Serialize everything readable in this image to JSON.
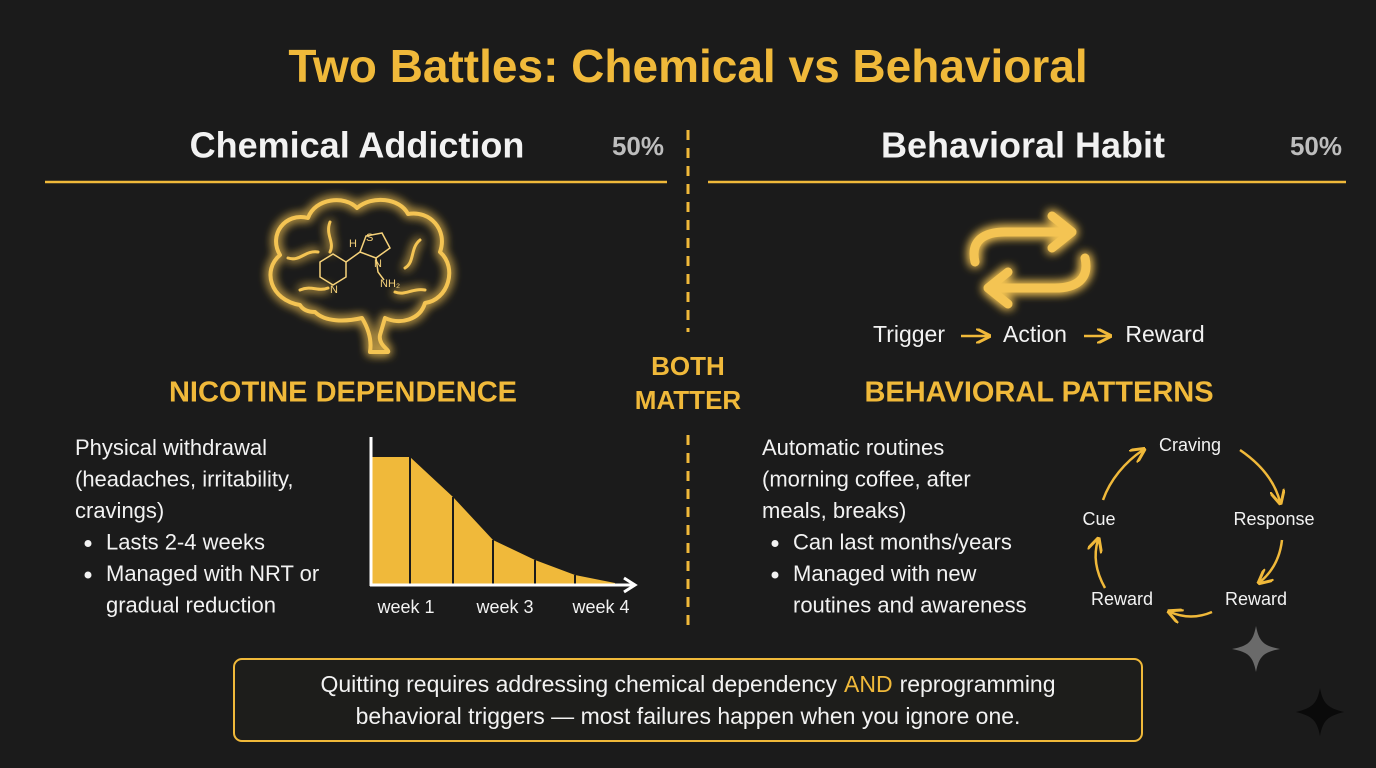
{
  "title": "Two Battles: Chemical vs Behavioral",
  "left": {
    "heading": "Chemical Addiction",
    "share": "50%",
    "molecule_labels": [
      "H",
      "S",
      "N",
      "N",
      "NH₂"
    ],
    "subtitle": "NICOTINE DEPENDENCE",
    "body": [
      "Physical withdrawal",
      "(headaches, irritability,",
      "cravings)"
    ],
    "bullets": [
      [
        "Lasts 2-4 weeks"
      ],
      [
        "Managed with NRT or",
        "gradual reduction"
      ]
    ],
    "chart_labels": [
      "week 1",
      "week 3",
      "week 4"
    ]
  },
  "center": [
    "BOTH",
    "MATTER"
  ],
  "right": {
    "heading": "Behavioral Habit",
    "share": "50%",
    "flow": [
      "Trigger",
      "Action",
      "Reward"
    ],
    "subtitle": "BEHAVIORAL PATTERNS",
    "body": [
      "Automatic routines",
      "(morning coffee, after",
      "meals, breaks)"
    ],
    "bullets": [
      [
        "Can last months/years"
      ],
      [
        "Managed with new",
        "routines and awareness"
      ]
    ],
    "cycle": [
      "Craving",
      "Response",
      "Reward",
      "Reward",
      "Cue"
    ]
  },
  "footer": {
    "line1": [
      "Quitting requires addressing chemical dependency",
      "AND",
      "reprogramming"
    ],
    "line2": "behavioral triggers — most failures happen when you ignore one."
  }
}
